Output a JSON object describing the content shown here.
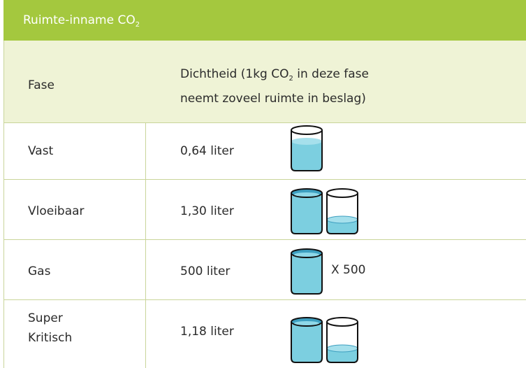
{
  "header": {
    "title": {
      "text": "Ruimte-inname CO",
      "sub": "2"
    }
  },
  "table": {
    "columns": [
      {
        "text": "Fase"
      },
      {
        "text": "Dichtheid (1kg CO",
        "sub": "2",
        "after": " in deze fase",
        "line2": "neemt zoveel ruimte in beslag)"
      }
    ],
    "rows": [
      {
        "phase": [
          "Vast"
        ],
        "density": "0,64 liter"
      },
      {
        "phase": [
          "Vloeibaar"
        ],
        "density": "1,30 liter"
      },
      {
        "phase": [
          "Gas"
        ],
        "density": "500 liter",
        "note": "X 500"
      },
      {
        "phase": [
          "Super",
          "Kritisch"
        ],
        "density": "1,18 liter"
      }
    ]
  }
}
